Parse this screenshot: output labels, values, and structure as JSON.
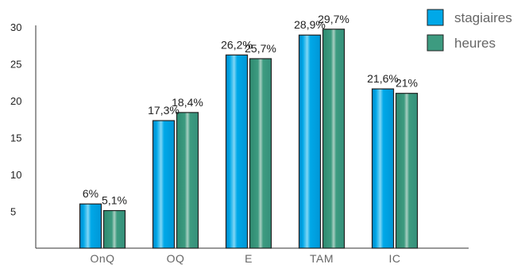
{
  "chart_data": {
    "type": "bar",
    "categories": [
      "OnQ",
      "OQ",
      "E",
      "TAM",
      "IC"
    ],
    "series": [
      {
        "name": "stagiaires",
        "values": [
          6,
          17.3,
          26.2,
          28.9,
          21.6
        ],
        "labels": [
          "6%",
          "17,3%",
          "26,2%",
          "28,9%",
          "21,6%"
        ],
        "color": "#00a8e8"
      },
      {
        "name": "heures",
        "values": [
          5.1,
          18.4,
          25.7,
          29.7,
          21
        ],
        "labels": [
          "5,1%",
          "18,4%",
          "25,7%",
          "29,7%",
          "21%"
        ],
        "color": "#3d9b80"
      }
    ],
    "yticks": [
      5,
      10,
      15,
      20,
      25,
      30
    ],
    "ylim": [
      0,
      30
    ],
    "title": "",
    "xlabel": "",
    "ylabel": "",
    "legend_position": "top-right",
    "grid": false
  }
}
